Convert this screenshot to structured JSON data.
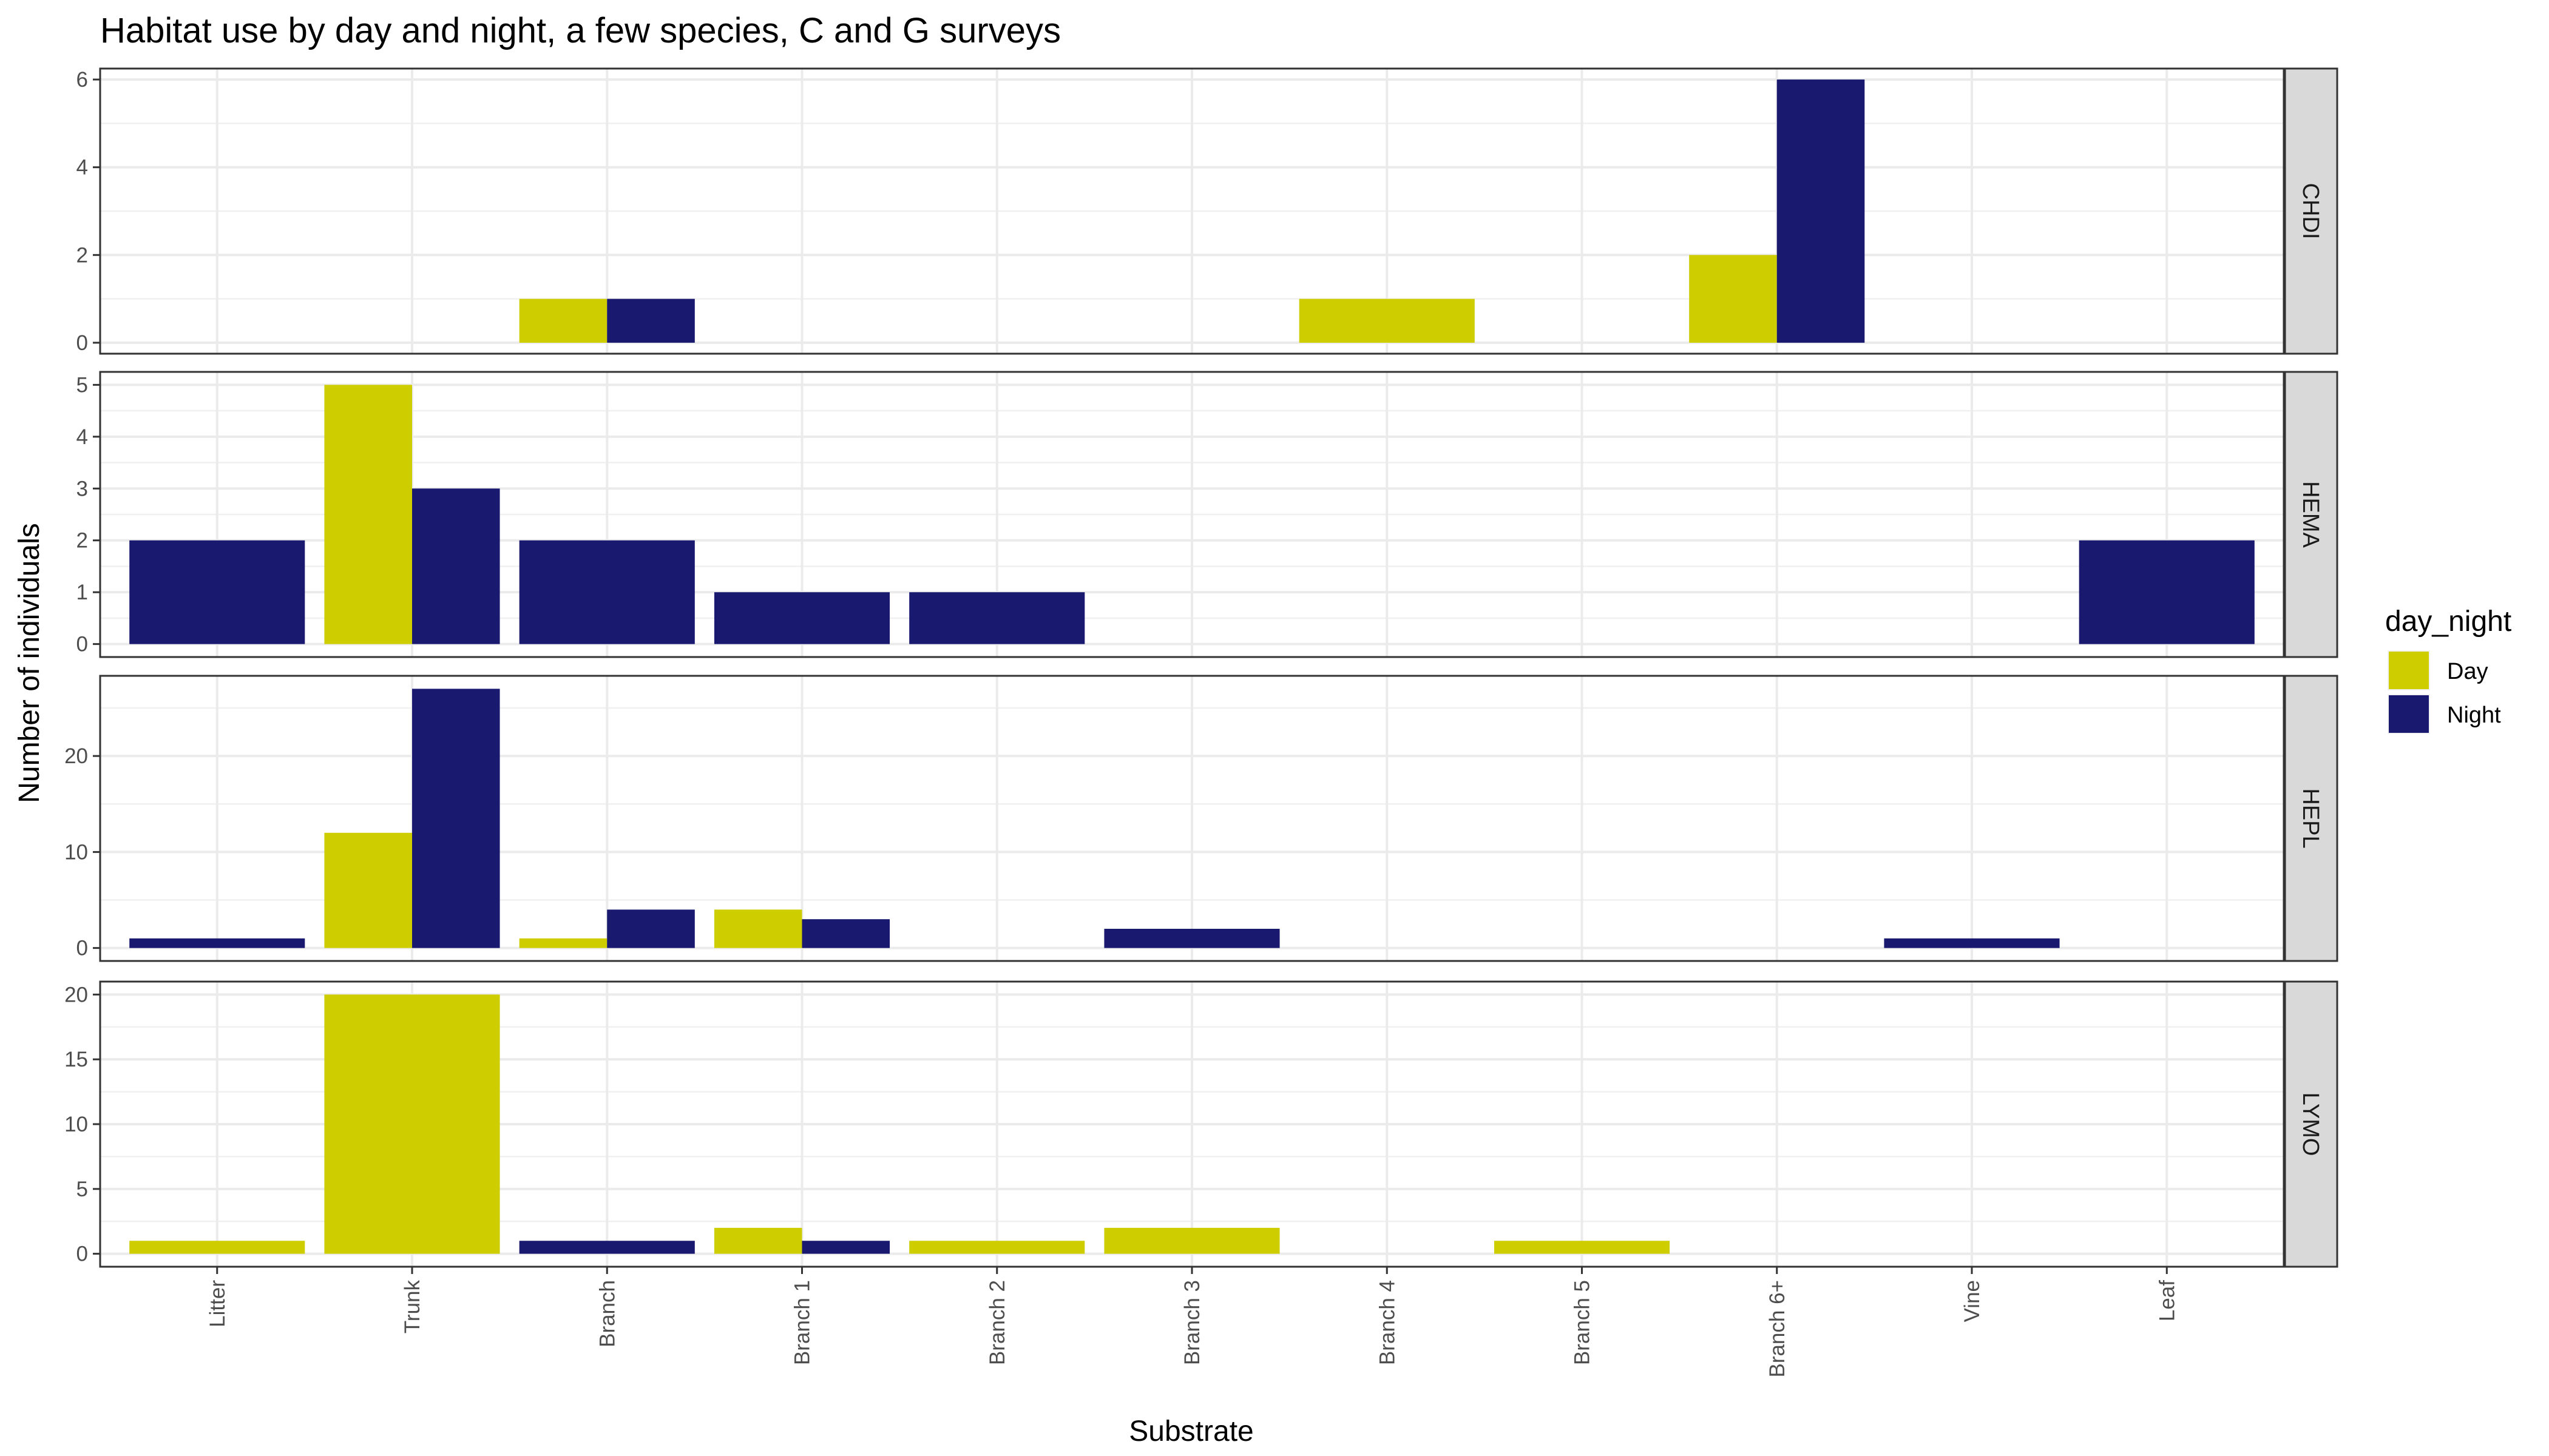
{
  "chart_data": {
    "type": "bar",
    "title": "Habitat use by day and night, a few species, C and G surveys",
    "xlabel": "Substrate",
    "ylabel": "Number of individuals",
    "categories": [
      "Litter",
      "Trunk",
      "Branch",
      "Branch 1",
      "Branch 2",
      "Branch 3",
      "Branch 4",
      "Branch 5",
      "Branch 6+",
      "Vine",
      "Leaf"
    ],
    "legend": {
      "title": "day_night",
      "position": "right",
      "entries": [
        {
          "name": "Day",
          "color": "#cdcd00"
        },
        {
          "name": "Night",
          "color": "#191970"
        }
      ]
    },
    "grid": true,
    "panels": [
      {
        "label": "CHDI",
        "ylim": [
          -0.25,
          6.25
        ],
        "yticks": [
          0,
          2,
          4,
          6
        ],
        "bars": [
          {
            "category": "Branch",
            "series": "Day",
            "value": 1
          },
          {
            "category": "Branch",
            "series": "Night",
            "value": 1
          },
          {
            "category": "Branch 4",
            "series": "Day",
            "value": 1
          },
          {
            "category": "Branch 6+",
            "series": "Day",
            "value": 2
          },
          {
            "category": "Branch 6+",
            "series": "Night",
            "value": 6
          }
        ]
      },
      {
        "label": "HEMA",
        "ylim": [
          -0.25,
          5.25
        ],
        "yticks": [
          0,
          1,
          2,
          3,
          4,
          5
        ],
        "bars": [
          {
            "category": "Litter",
            "series": "Night",
            "value": 2
          },
          {
            "category": "Trunk",
            "series": "Day",
            "value": 5
          },
          {
            "category": "Trunk",
            "series": "Night",
            "value": 3
          },
          {
            "category": "Branch",
            "series": "Night",
            "value": 2
          },
          {
            "category": "Branch 1",
            "series": "Night",
            "value": 1
          },
          {
            "category": "Branch 2",
            "series": "Night",
            "value": 1
          },
          {
            "category": "Leaf",
            "series": "Night",
            "value": 2
          }
        ]
      },
      {
        "label": "HEPL",
        "ylim": [
          -1.35,
          28.35
        ],
        "yticks": [
          0,
          10,
          20
        ],
        "bars": [
          {
            "category": "Litter",
            "series": "Night",
            "value": 1
          },
          {
            "category": "Trunk",
            "series": "Day",
            "value": 12
          },
          {
            "category": "Trunk",
            "series": "Night",
            "value": 27
          },
          {
            "category": "Branch",
            "series": "Day",
            "value": 1
          },
          {
            "category": "Branch",
            "series": "Night",
            "value": 4
          },
          {
            "category": "Branch 1",
            "series": "Day",
            "value": 4
          },
          {
            "category": "Branch 1",
            "series": "Night",
            "value": 3
          },
          {
            "category": "Branch 3",
            "series": "Night",
            "value": 2
          },
          {
            "category": "Vine",
            "series": "Night",
            "value": 1
          }
        ]
      },
      {
        "label": "LYMO",
        "ylim": [
          -1,
          21
        ],
        "yticks": [
          0,
          5,
          10,
          15,
          20
        ],
        "bars": [
          {
            "category": "Litter",
            "series": "Day",
            "value": 1
          },
          {
            "category": "Trunk",
            "series": "Day",
            "value": 20
          },
          {
            "category": "Branch",
            "series": "Night",
            "value": 1
          },
          {
            "category": "Branch 1",
            "series": "Day",
            "value": 2
          },
          {
            "category": "Branch 1",
            "series": "Night",
            "value": 1
          },
          {
            "category": "Branch 2",
            "series": "Day",
            "value": 1
          },
          {
            "category": "Branch 3",
            "series": "Day",
            "value": 2
          },
          {
            "category": "Branch 5",
            "series": "Day",
            "value": 1
          }
        ]
      }
    ]
  }
}
